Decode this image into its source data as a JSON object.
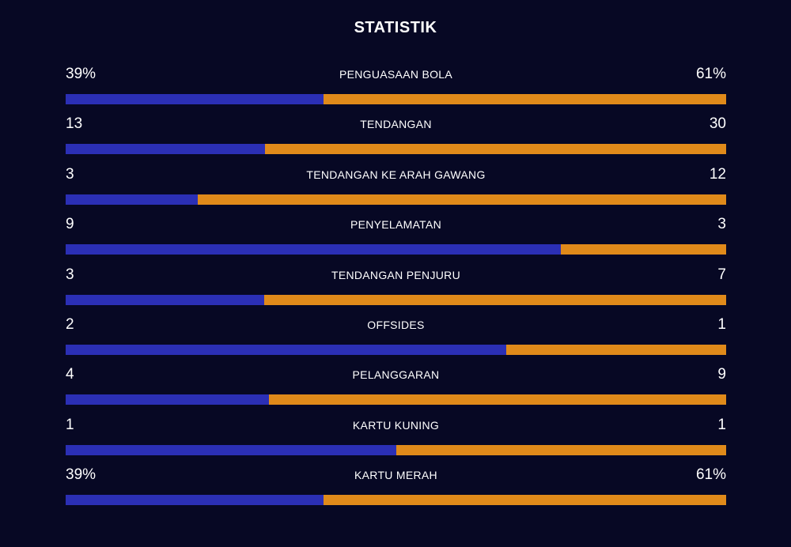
{
  "title": "STATISTIK",
  "colors": {
    "home": "#2b2fb5",
    "away": "#e08a1a",
    "background": "#070824"
  },
  "stats": [
    {
      "label": "PENGUASAAN BOLA",
      "left": "39%",
      "right": "61%",
      "left_share": 0.39
    },
    {
      "label": "TENDANGAN",
      "left": "13",
      "right": "30",
      "left_share": 0.302
    },
    {
      "label": "TENDANGAN KE ARAH GAWANG",
      "left": "3",
      "right": "12",
      "left_share": 0.2
    },
    {
      "label": "PENYELAMATAN",
      "left": "9",
      "right": "3",
      "left_share": 0.75
    },
    {
      "label": "TENDANGAN PENJURU",
      "left": "3",
      "right": "7",
      "left_share": 0.3
    },
    {
      "label": "OFFSIDES",
      "left": "2",
      "right": "1",
      "left_share": 0.667
    },
    {
      "label": "PELANGGARAN",
      "left": "4",
      "right": "9",
      "left_share": 0.308
    },
    {
      "label": "KARTU KUNING",
      "left": "1",
      "right": "1",
      "left_share": 0.5
    },
    {
      "label": "KARTU MERAH",
      "left": "39%",
      "right": "61%",
      "left_share": 0.39
    }
  ]
}
